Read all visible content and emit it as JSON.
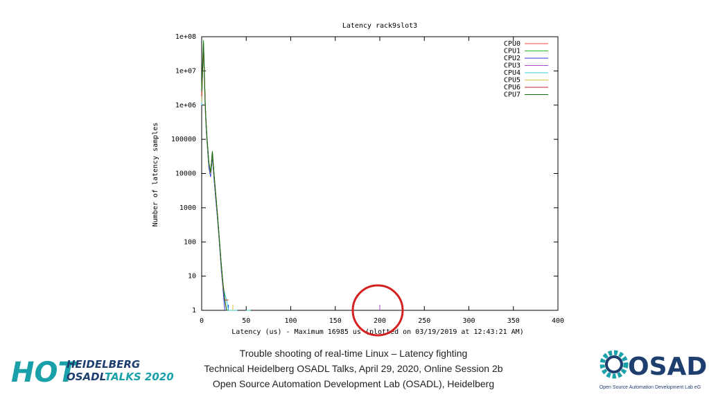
{
  "chart_data": {
    "type": "line",
    "title": "Latency rack9slot3",
    "xlabel": "Latency (us) - Maximum 16985 us (plotted on 03/19/2019 at 12:43:21 AM)",
    "ylabel": "Number of latency samples",
    "log_y": true,
    "legend": "top-right",
    "x": [
      0,
      1,
      2,
      3,
      4,
      5,
      6,
      8,
      10,
      12,
      14,
      16,
      18,
      20,
      22,
      24,
      26,
      28,
      30,
      35,
      40,
      45,
      50,
      55,
      200
    ],
    "xlim": [
      0,
      400
    ],
    "xticks": [
      0,
      50,
      100,
      150,
      200,
      250,
      300,
      350,
      400
    ],
    "ylim": [
      1,
      100000000
    ],
    "yticks": [
      1,
      10,
      100,
      1000,
      10000,
      100000,
      {
        "value": 1000000,
        "label": "1e+06"
      },
      {
        "value": 10000000,
        "label": "1e+07"
      },
      {
        "value": 100000000,
        "label": "1e+08"
      }
    ],
    "series": [
      {
        "name": "CPU0",
        "color": "#ff4040",
        "values": [
          2000000,
          12000000,
          40000000,
          7000000,
          900000,
          250000,
          90000,
          18000,
          9000,
          35000,
          7000,
          1800,
          450,
          90,
          18,
          4,
          2,
          1,
          null,
          null,
          null,
          null,
          null,
          null,
          null
        ]
      },
      {
        "name": "CPU1",
        "color": "#20b020",
        "values": [
          3000000,
          15000000,
          80000000,
          10000000,
          1200000,
          300000,
          110000,
          22000,
          11000,
          45000,
          9000,
          2200,
          550,
          110,
          22,
          6,
          2,
          1,
          null,
          null,
          null,
          null,
          null,
          null,
          null
        ]
      },
      {
        "name": "CPU2",
        "color": "#3030e0",
        "values": [
          1000000,
          9000000,
          50000000,
          6000000,
          800000,
          200000,
          80000,
          15000,
          8000,
          30000,
          6000,
          1500,
          400,
          80,
          15,
          4,
          1,
          null,
          1,
          null,
          null,
          null,
          null,
          null,
          null
        ]
      },
      {
        "name": "CPU3",
        "color": "#b040d0",
        "values": [
          1500000,
          10000000,
          60000000,
          8000000,
          1000000,
          280000,
          100000,
          20000,
          10000,
          40000,
          8000,
          2000,
          500,
          100,
          20,
          5,
          2,
          1,
          null,
          null,
          null,
          null,
          null,
          null,
          1
        ]
      },
      {
        "name": "CPU4",
        "color": "#30d0d0",
        "values": [
          1000000,
          8000000,
          45000000,
          7000000,
          900000,
          220000,
          90000,
          19000,
          9500,
          38000,
          7500,
          1900,
          480,
          95,
          19,
          5,
          3,
          2,
          1,
          1,
          1,
          null,
          1,
          1,
          null
        ]
      },
      {
        "name": "CPU5",
        "color": "#e0c040",
        "values": [
          1200000,
          9000000,
          50000000,
          7500000,
          950000,
          260000,
          95000,
          20000,
          10000,
          39000,
          7800,
          1950,
          490,
          98,
          21,
          5,
          2,
          1,
          null,
          1,
          null,
          null,
          null,
          null,
          null
        ]
      },
      {
        "name": "CPU6",
        "color": "#c02020",
        "values": [
          1800000,
          11000000,
          55000000,
          8500000,
          1100000,
          290000,
          105000,
          21000,
          10500,
          42000,
          8200,
          2050,
          510,
          105,
          21,
          6,
          2,
          2,
          2,
          null,
          null,
          null,
          null,
          null,
          null
        ]
      },
      {
        "name": "CPU7",
        "color": "#107010",
        "values": [
          2500000,
          13000000,
          70000000,
          9000000,
          1100000,
          300000,
          110000,
          21000,
          11000,
          44000,
          8800,
          2100,
          520,
          105,
          22,
          6,
          2,
          1,
          1,
          null,
          null,
          null,
          null,
          null,
          null
        ]
      }
    ]
  },
  "slide": {
    "caption": [
      "Trouble shooting of real-time Linux – Latency fighting",
      "Technical Heidelberg OSADL Talks, April 29, 2020, Online Session 2b",
      "Open Source Automation Development Lab (OSADL), Heidelberg"
    ],
    "logo_left": {
      "hot": "HOT",
      "line1": "HEIDELBERG",
      "line2a": "OSADL",
      "line2b": "TALKS 2020"
    },
    "logo_right": {
      "name": "OSADL",
      "sub": "Open Source Automation Development Lab eG"
    }
  }
}
